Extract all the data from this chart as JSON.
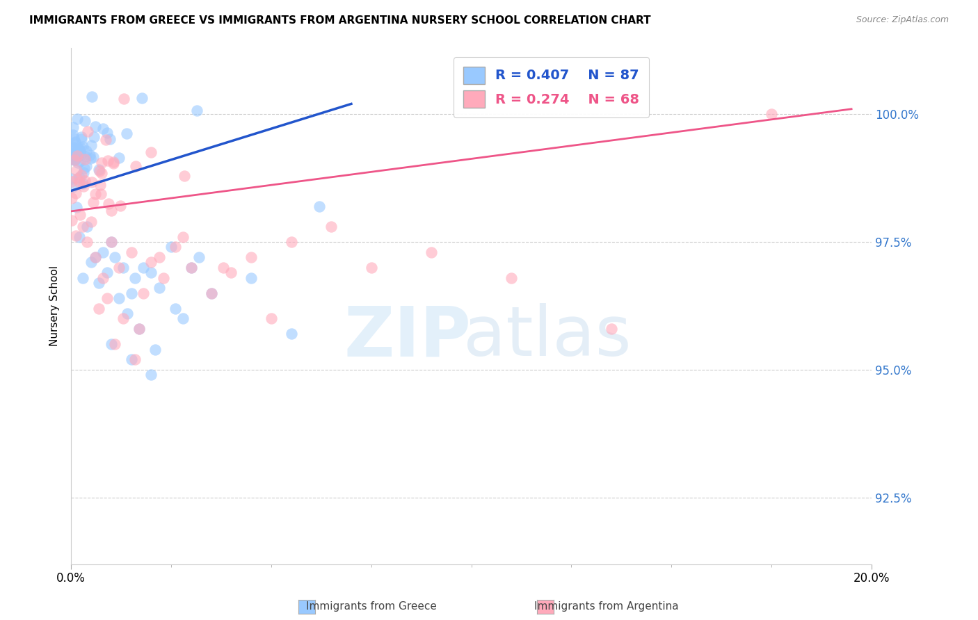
{
  "title": "IMMIGRANTS FROM GREECE VS IMMIGRANTS FROM ARGENTINA NURSERY SCHOOL CORRELATION CHART",
  "source": "Source: ZipAtlas.com",
  "ylabel": "Nursery School",
  "ytick_values": [
    92.5,
    95.0,
    97.5,
    100.0
  ],
  "xlim": [
    0.0,
    20.0
  ],
  "ylim": [
    91.2,
    101.3
  ],
  "legend_greece": "Immigrants from Greece",
  "legend_argentina": "Immigrants from Argentina",
  "R_greece": 0.407,
  "N_greece": 87,
  "R_argentina": 0.274,
  "N_argentina": 68,
  "greece_color": "#99c9ff",
  "argentina_color": "#ffaabb",
  "greece_line_color": "#2255cc",
  "argentina_line_color": "#ee5588",
  "greece_line_x": [
    0.0,
    7.0
  ],
  "greece_line_y": [
    98.5,
    100.2
  ],
  "argentina_line_x": [
    0.0,
    19.5
  ],
  "argentina_line_y": [
    98.1,
    100.1
  ]
}
